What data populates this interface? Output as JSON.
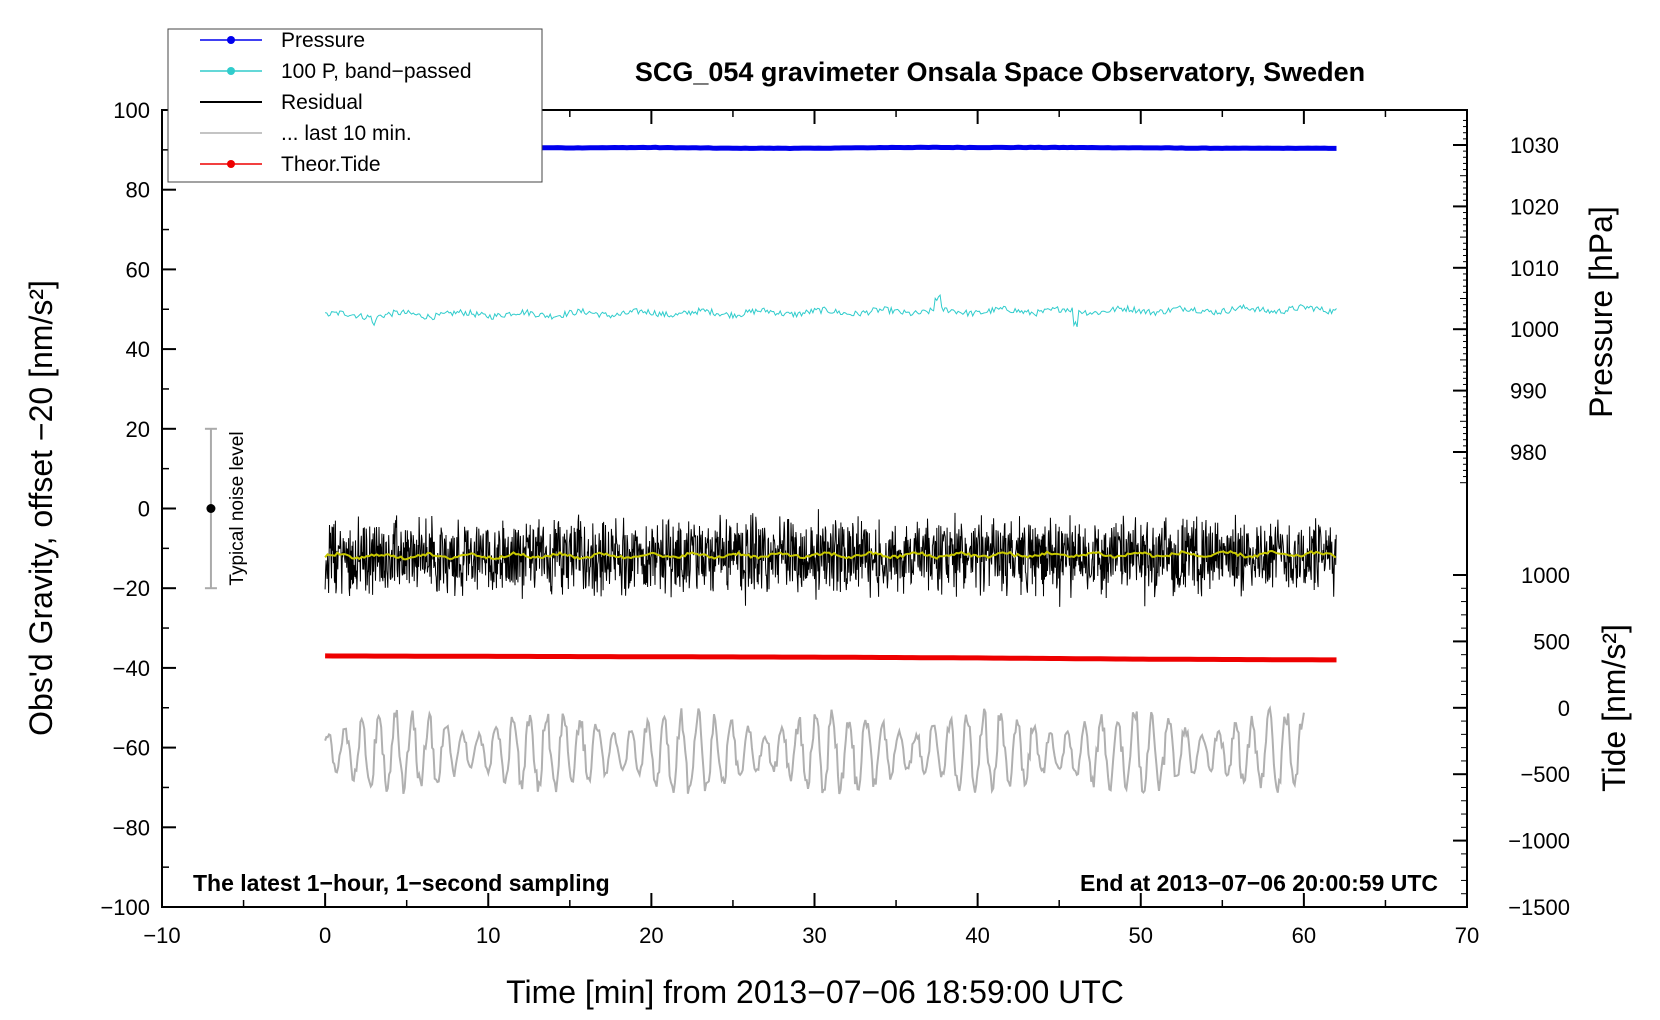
{
  "chart_data": {
    "type": "line",
    "title": "SCG_054 gravimeter Onsala Space Observatory, Sweden",
    "xlabel": "Time [min] from 2013−07−06 18:59:00 UTC",
    "ylabel": "Obs'd Gravity, offset −20 [nm/s²]",
    "xlim": [
      -10,
      70
    ],
    "ylim": [
      -100,
      100
    ],
    "x_ticks": [
      {
        "value": -10,
        "label": "−10"
      },
      {
        "value": 0,
        "label": "0"
      },
      {
        "value": 10,
        "label": "10"
      },
      {
        "value": 20,
        "label": "20"
      },
      {
        "value": 30,
        "label": "30"
      },
      {
        "value": 40,
        "label": "40"
      },
      {
        "value": 50,
        "label": "50"
      },
      {
        "value": 60,
        "label": "60"
      },
      {
        "value": 70,
        "label": "70"
      }
    ],
    "y_ticks": [
      {
        "value": 100,
        "label": "100"
      },
      {
        "value": 80,
        "label": "80"
      },
      {
        "value": 60,
        "label": "60"
      },
      {
        "value": 40,
        "label": "40"
      },
      {
        "value": 20,
        "label": "20"
      },
      {
        "value": 0,
        "label": "0"
      },
      {
        "value": -20,
        "label": "−20"
      },
      {
        "value": -40,
        "label": "−40"
      },
      {
        "value": -60,
        "label": "−60"
      },
      {
        "value": -80,
        "label": "−80"
      },
      {
        "value": -100,
        "label": "−100"
      }
    ],
    "pressure_axis": {
      "label": "Pressure [hPa]",
      "range": [
        975,
        1034
      ],
      "ticks": [
        {
          "value": 1030,
          "label": "1030"
        },
        {
          "value": 1020,
          "label": "1020"
        },
        {
          "value": 1010,
          "label": "1010"
        },
        {
          "value": 1000,
          "label": "1000"
        },
        {
          "value": 990,
          "label": "990"
        },
        {
          "value": 980,
          "label": "980"
        }
      ]
    },
    "tide_axis": {
      "label": "Tide [nm/s²]",
      "range": [
        -1500,
        1000
      ],
      "ticks": [
        {
          "value": 1000,
          "label": "1000"
        },
        {
          "value": 500,
          "label": "500"
        },
        {
          "value": 0,
          "label": "0"
        },
        {
          "value": -500,
          "label": "−500"
        },
        {
          "value": -1000,
          "label": "−1000"
        },
        {
          "value": -1500,
          "label": "−1500"
        }
      ]
    },
    "legend": [
      {
        "name": "Pressure",
        "color": "#0000ee",
        "marker": true
      },
      {
        "name": "100 P, band−passed",
        "color": "#30cccc",
        "marker": true
      },
      {
        "name": "Residual",
        "color": "#000000",
        "marker": false
      },
      {
        "name": "... last 10 min.",
        "color": "#b0b0b0",
        "marker": false
      },
      {
        "name": "Theor.Tide",
        "color": "#ee0000",
        "marker": true
      }
    ],
    "series": [
      {
        "name": "Pressure",
        "color": "#0000ee",
        "x": [
          0,
          5,
          10,
          15,
          20,
          25,
          30,
          35,
          40,
          45,
          50,
          55,
          60,
          62
        ],
        "y": [
          90.5,
          90.6,
          90.6,
          90.5,
          90.6,
          90.4,
          90.4,
          90.6,
          90.6,
          90.6,
          90.5,
          90.4,
          90.4,
          90.4
        ]
      },
      {
        "name": "100 P, band−passed",
        "color": "#30cccc",
        "x": [
          0,
          62
        ],
        "y": [
          48.5,
          50
        ]
      },
      {
        "name": "Residual",
        "color": "#000000",
        "x": [
          0,
          62
        ],
        "y": [
          -12,
          -12
        ]
      },
      {
        "name": "Residual smoothed",
        "color": "#c8c800",
        "x": [
          0,
          62
        ],
        "y": [
          -12,
          -11.5
        ]
      },
      {
        "name": "... last 10 min.",
        "color": "#b0b0b0",
        "x": [
          0,
          60
        ],
        "y": [
          -61,
          -61
        ]
      },
      {
        "name": "Theor.Tide",
        "color": "#ee0000",
        "x": [
          0,
          10,
          20,
          30,
          40,
          50,
          62
        ],
        "y": [
          -37,
          -37.1,
          -37.2,
          -37.3,
          -37.5,
          -37.8,
          -38
        ]
      }
    ],
    "noise_bar": {
      "label": "Typical noise level",
      "x": -7,
      "center": 0,
      "low": -20,
      "high": 20
    },
    "annotations": {
      "left": "The latest 1−hour, 1−second sampling",
      "right": "End at 2013−07−06 20:00:59 UTC"
    }
  }
}
